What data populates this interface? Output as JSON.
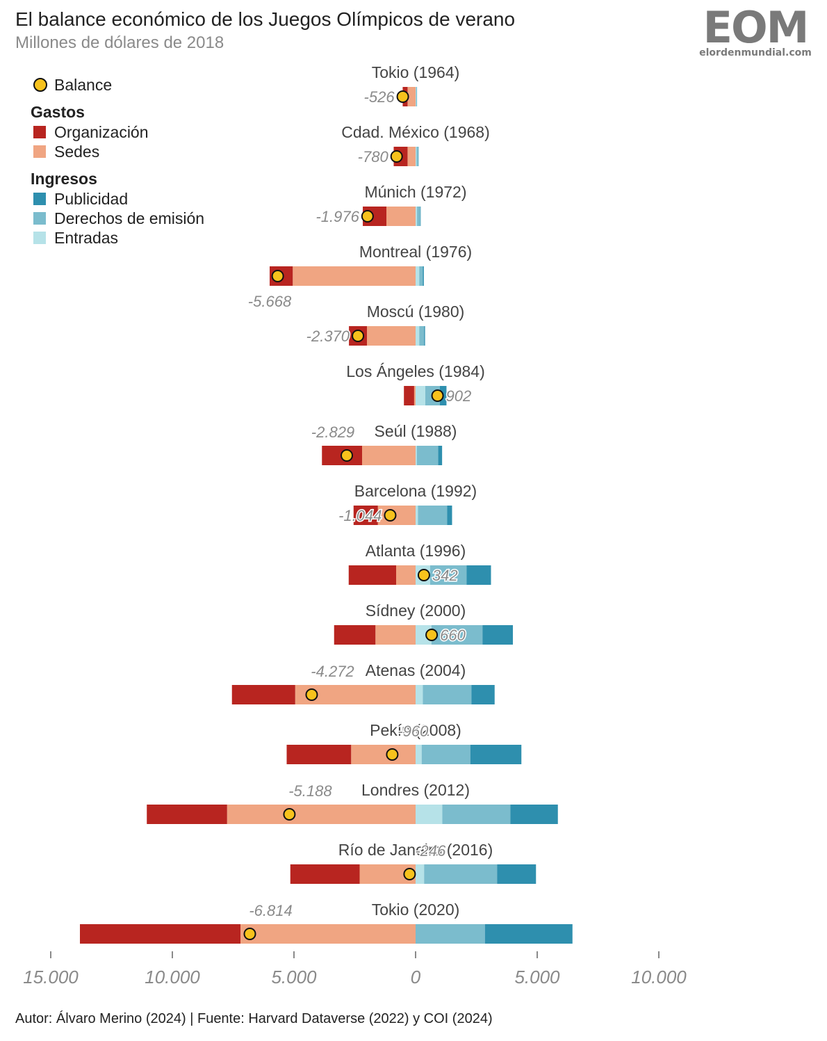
{
  "title": "El balance económico de los Juegos Olímpicos de verano",
  "subtitle": "Millones de dólares de 2018",
  "logo": {
    "mark": "EOM",
    "url": "elordenmundial.com"
  },
  "legend": {
    "balance": "Balance",
    "gastos_title": "Gastos",
    "organizacion": "Organización",
    "sedes": "Sedes",
    "ingresos_title": "Ingresos",
    "publicidad": "Publicidad",
    "derechos": "Derechos de emisión",
    "entradas": "Entradas"
  },
  "footer": "Autor: Álvaro Merino (2024) | Fuente: Harvard Dataverse (2022) y COI (2024)",
  "colors": {
    "organizacion": "#b82520",
    "sedes": "#f0a582",
    "entradas": "#b6e2e8",
    "derechos": "#7bbccd",
    "publicidad": "#2e8fae",
    "balance": "#f7c21c",
    "axis": "#8a8a8a"
  },
  "chart_data": {
    "type": "bar",
    "orientation": "horizontal-diverging",
    "xlim": [
      -15500,
      10500
    ],
    "xticks": [
      -15000,
      -10000,
      -5000,
      0,
      5000,
      10000
    ],
    "xtick_labels": [
      "15.000",
      "10.000",
      "5.000",
      "0",
      "5.000",
      "10.000"
    ],
    "series_order": [
      "organizacion",
      "sedes",
      "entradas",
      "derechos",
      "publicidad"
    ],
    "games": [
      {
        "name": "Tokio (1964)",
        "organizacion": 200,
        "sedes": 330,
        "entradas": 20,
        "derechos": 40,
        "publicidad": 0,
        "balance": -526,
        "balance_label": "-526"
      },
      {
        "name": "Cdad. México (1968)",
        "organizacion": 570,
        "sedes": 330,
        "entradas": 40,
        "derechos": 90,
        "publicidad": 0,
        "balance": -780,
        "balance_label": "-780"
      },
      {
        "name": "Múnich (1972)",
        "organizacion": 970,
        "sedes": 1200,
        "entradas": 60,
        "derechos": 130,
        "publicidad": 20,
        "balance": -1976,
        "balance_label": "-1.976"
      },
      {
        "name": "Montreal (1976)",
        "organizacion": 950,
        "sedes": 5050,
        "entradas": 150,
        "derechos": 150,
        "publicidad": 40,
        "balance": -5668,
        "balance_label": "-5.668"
      },
      {
        "name": "Moscú (1980)",
        "organizacion": 740,
        "sedes": 2000,
        "entradas": 150,
        "derechos": 200,
        "publicidad": 40,
        "balance": -2370,
        "balance_label": "-2.370"
      },
      {
        "name": "Los Ángeles (1984)",
        "organizacion": 420,
        "sedes": 60,
        "entradas": 400,
        "derechos": 600,
        "publicidad": 270,
        "balance": 902,
        "balance_label": "902"
      },
      {
        "name": "Seúl (1988)",
        "organizacion": 1650,
        "sedes": 2200,
        "entradas": 50,
        "derechos": 880,
        "publicidad": 160,
        "balance": -2829,
        "balance_label": "-2.829"
      },
      {
        "name": "Barcelona (1992)",
        "organizacion": 1000,
        "sedes": 1550,
        "entradas": 100,
        "derechos": 1200,
        "publicidad": 200,
        "balance": -1044,
        "balance_label": "-1.044"
      },
      {
        "name": "Atlanta (1996)",
        "organizacion": 1950,
        "sedes": 800,
        "entradas": 600,
        "derechos": 1500,
        "publicidad": 1000,
        "balance": 342,
        "balance_label": "342"
      },
      {
        "name": "Sídney (2000)",
        "organizacion": 1700,
        "sedes": 1650,
        "entradas": 650,
        "derechos": 2100,
        "publicidad": 1250,
        "balance": 660,
        "balance_label": "660"
      },
      {
        "name": "Atenas (2004)",
        "organizacion": 2600,
        "sedes": 4950,
        "entradas": 300,
        "derechos": 2000,
        "publicidad": 950,
        "balance": -4272,
        "balance_label": "-4.272"
      },
      {
        "name": "Pekín (2008)",
        "organizacion": 2650,
        "sedes": 2650,
        "entradas": 250,
        "derechos": 2000,
        "publicidad": 2100,
        "balance": -960,
        "balance_label": "-960"
      },
      {
        "name": "Londres (2012)",
        "organizacion": 3300,
        "sedes": 7750,
        "entradas": 1100,
        "derechos": 2800,
        "publicidad": 1950,
        "balance": -5188,
        "balance_label": "-5.188"
      },
      {
        "name": "Río de Janeiro (2016)",
        "organizacion": 2850,
        "sedes": 2300,
        "entradas": 350,
        "derechos": 3000,
        "publicidad": 1600,
        "balance": -246,
        "balance_label": "-246"
      },
      {
        "name": "Tokio (2020)",
        "organizacion": 6600,
        "sedes": 7200,
        "entradas": 0,
        "derechos": 2850,
        "publicidad": 3600,
        "balance": -6814,
        "balance_label": "-6.814"
      }
    ]
  }
}
